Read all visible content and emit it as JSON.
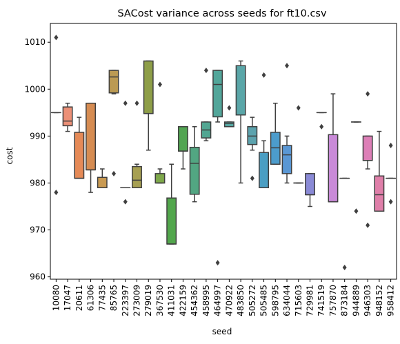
{
  "chart_data": {
    "type": "box",
    "title": "SACost variance across seeds for ft10.csv",
    "xlabel": "seed",
    "ylabel": "cost",
    "ylim": [
      959.5,
      1014
    ],
    "yticks": [
      960,
      970,
      980,
      990,
      1000,
      1010
    ],
    "grid": false,
    "categories": [
      "10080",
      "17047",
      "20611",
      "61306",
      "77435",
      "85765",
      "223397",
      "273009",
      "279019",
      "367530",
      "411031",
      "422159",
      "454362",
      "458995",
      "464997",
      "470922",
      "483850",
      "505272",
      "505485",
      "598795",
      "634044",
      "715603",
      "729981",
      "741519",
      "757870",
      "873184",
      "944889",
      "946303",
      "948152",
      "958412"
    ],
    "boxes": [
      {
        "seed": "10080",
        "color": "#e8827a",
        "whislo": 995,
        "q1": 995,
        "med": 995,
        "q3": 995,
        "whishi": 995,
        "fliers": [
          1011,
          978
        ]
      },
      {
        "seed": "17047",
        "color": "#ec9077",
        "whislo": 991,
        "q1": 992.2,
        "med": 993.2,
        "q3": 996.2,
        "whishi": 997,
        "fliers": []
      },
      {
        "seed": "20611",
        "color": "#e58a57",
        "whislo": 981,
        "q1": 981,
        "med": 981,
        "q3": 990.8,
        "whishi": 994,
        "fliers": []
      },
      {
        "seed": "61306",
        "color": "#d68c52",
        "whislo": 978,
        "q1": 982.8,
        "med": 982.8,
        "q3": 997,
        "whishi": 997,
        "fliers": []
      },
      {
        "seed": "77435",
        "color": "#c99a52",
        "whislo": 979,
        "q1": 979,
        "med": 979,
        "q3": 981.2,
        "whishi": 983,
        "fliers": []
      },
      {
        "seed": "85765",
        "color": "#bb9a53",
        "whislo": 999,
        "q1": 999.2,
        "med": 1002.6,
        "q3": 1004,
        "whishi": 1004,
        "fliers": [
          982
        ]
      },
      {
        "seed": "223397",
        "color": "#a7a052",
        "whislo": 979,
        "q1": 979,
        "med": 979,
        "q3": 979,
        "whishi": 979,
        "fliers": [
          997,
          976
        ]
      },
      {
        "seed": "273009",
        "color": "#a7a052",
        "whislo": 979,
        "q1": 979,
        "med": 980.6,
        "q3": 983.5,
        "whishi": 984,
        "fliers": [
          997
        ]
      },
      {
        "seed": "279019",
        "color": "#8e9e48",
        "whislo": 987,
        "q1": 994.8,
        "med": 994.8,
        "q3": 1006,
        "whishi": 1006,
        "fliers": []
      },
      {
        "seed": "367530",
        "color": "#7ea84b",
        "whislo": 980,
        "q1": 980,
        "med": 980,
        "q3": 982,
        "whishi": 983,
        "fliers": [
          1001
        ]
      },
      {
        "seed": "411031",
        "color": "#52a64c",
        "whislo": 967,
        "q1": 967,
        "med": 967,
        "q3": 976.8,
        "whishi": 984,
        "fliers": []
      },
      {
        "seed": "422159",
        "color": "#52a552",
        "whislo": 983,
        "q1": 986.8,
        "med": 986.8,
        "q3": 992,
        "whishi": 992,
        "fliers": []
      },
      {
        "seed": "454362",
        "color": "#52a682",
        "whislo": 976,
        "q1": 977.6,
        "med": 984.2,
        "q3": 987.6,
        "whishi": 992,
        "fliers": []
      },
      {
        "seed": "458995",
        "color": "#52a692",
        "whislo": 989,
        "q1": 989.6,
        "med": 991.3,
        "q3": 993,
        "whishi": 993,
        "fliers": [
          1004
        ]
      },
      {
        "seed": "464997",
        "color": "#52a69a",
        "whislo": 993,
        "q1": 994.1,
        "med": 1001,
        "q3": 1004,
        "whishi": 1004,
        "fliers": [
          963
        ]
      },
      {
        "seed": "470922",
        "color": "#55a7a2",
        "whislo": 992,
        "q1": 992,
        "med": 992.7,
        "q3": 993,
        "whishi": 993,
        "fliers": [
          996
        ]
      },
      {
        "seed": "483850",
        "color": "#5aa6a8",
        "whislo": 980,
        "q1": 994.5,
        "med": 994.5,
        "q3": 1005,
        "whishi": 1006,
        "fliers": []
      },
      {
        "seed": "505272",
        "color": "#5ca3ae",
        "whislo": 987,
        "q1": 988.2,
        "med": 990,
        "q3": 992,
        "whishi": 994,
        "fliers": [
          981
        ]
      },
      {
        "seed": "505485",
        "color": "#4a9ec3",
        "whislo": 979,
        "q1": 979,
        "med": 979,
        "q3": 986.5,
        "whishi": 989,
        "fliers": [
          1003
        ]
      },
      {
        "seed": "598795",
        "color": "#4c9ccc",
        "whislo": 984,
        "q1": 984,
        "med": 987.5,
        "q3": 990.8,
        "whishi": 997,
        "fliers": []
      },
      {
        "seed": "634044",
        "color": "#5a97d4",
        "whislo": 980,
        "q1": 982,
        "med": 986,
        "q3": 988,
        "whishi": 990,
        "fliers": [
          1005
        ]
      },
      {
        "seed": "715603",
        "color": "#7a8fd6",
        "whislo": 980,
        "q1": 980,
        "med": 980,
        "q3": 980,
        "whishi": 980,
        "fliers": [
          996
        ]
      },
      {
        "seed": "729981",
        "color": "#8a8ad6",
        "whislo": 975,
        "q1": 977.5,
        "med": 977.5,
        "q3": 982,
        "whishi": 982,
        "fliers": []
      },
      {
        "seed": "741519",
        "color": "#a283d4",
        "whislo": 995,
        "q1": 995,
        "med": 995,
        "q3": 995,
        "whishi": 995,
        "fliers": [
          992
        ]
      },
      {
        "seed": "757870",
        "color": "#c98ad8",
        "whislo": 976,
        "q1": 976,
        "med": 976,
        "q3": 990.3,
        "whishi": 999,
        "fliers": []
      },
      {
        "seed": "873184",
        "color": "#d483d0",
        "whislo": 981,
        "q1": 981,
        "med": 981,
        "q3": 981,
        "whishi": 981,
        "fliers": [
          962
        ]
      },
      {
        "seed": "944889",
        "color": "#d880c5",
        "whislo": 993,
        "q1": 993,
        "med": 993,
        "q3": 993,
        "whishi": 993,
        "fliers": [
          974
        ]
      },
      {
        "seed": "946303",
        "color": "#dd7fb7",
        "whislo": 983,
        "q1": 984.8,
        "med": 984.8,
        "q3": 990,
        "whishi": 990,
        "fliers": [
          999,
          971
        ]
      },
      {
        "seed": "948152",
        "color": "#df7fa9",
        "whislo": 974,
        "q1": 974,
        "med": 977.5,
        "q3": 981.5,
        "whishi": 991,
        "fliers": []
      },
      {
        "seed": "958412",
        "color": "#e07c95",
        "whislo": 981,
        "q1": 981,
        "med": 981,
        "q3": 981,
        "whishi": 981,
        "fliers": [
          988,
          976
        ]
      }
    ]
  }
}
